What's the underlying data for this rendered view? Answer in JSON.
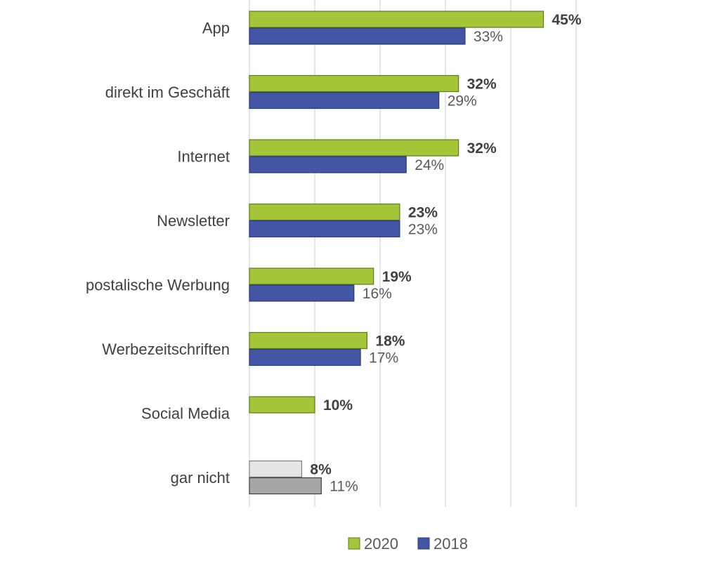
{
  "chart_data": {
    "type": "bar",
    "orientation": "horizontal",
    "categories": [
      "App",
      "direkt im Geschäft",
      "Internet",
      "Newsletter",
      "postalische Werbung",
      "Werbezeitschriften",
      "Social Media",
      "gar nicht"
    ],
    "series": [
      {
        "name": "2020",
        "values": [
          45,
          32,
          32,
          23,
          19,
          18,
          10,
          8
        ],
        "labels": [
          "45%",
          "32%",
          "32%",
          "23%",
          "19%",
          "18%",
          "10%",
          "8%"
        ],
        "color": "#A4C639",
        "special_color": "#E6E6E6"
      },
      {
        "name": "2018",
        "values": [
          33,
          29,
          24,
          23,
          16,
          17,
          null,
          11
        ],
        "labels": [
          "33%",
          "29%",
          "24%",
          "23%",
          "16%",
          "17%",
          "",
          "11%"
        ],
        "color": "#4355A5",
        "special_color": "#A6A6A6"
      }
    ],
    "special_category": "gar nicht",
    "xlim": [
      0,
      50
    ],
    "grid": true,
    "legend": {
      "position": "bottom",
      "entries": [
        "2020",
        "2018"
      ]
    },
    "title": "",
    "xlabel": "",
    "ylabel": ""
  }
}
